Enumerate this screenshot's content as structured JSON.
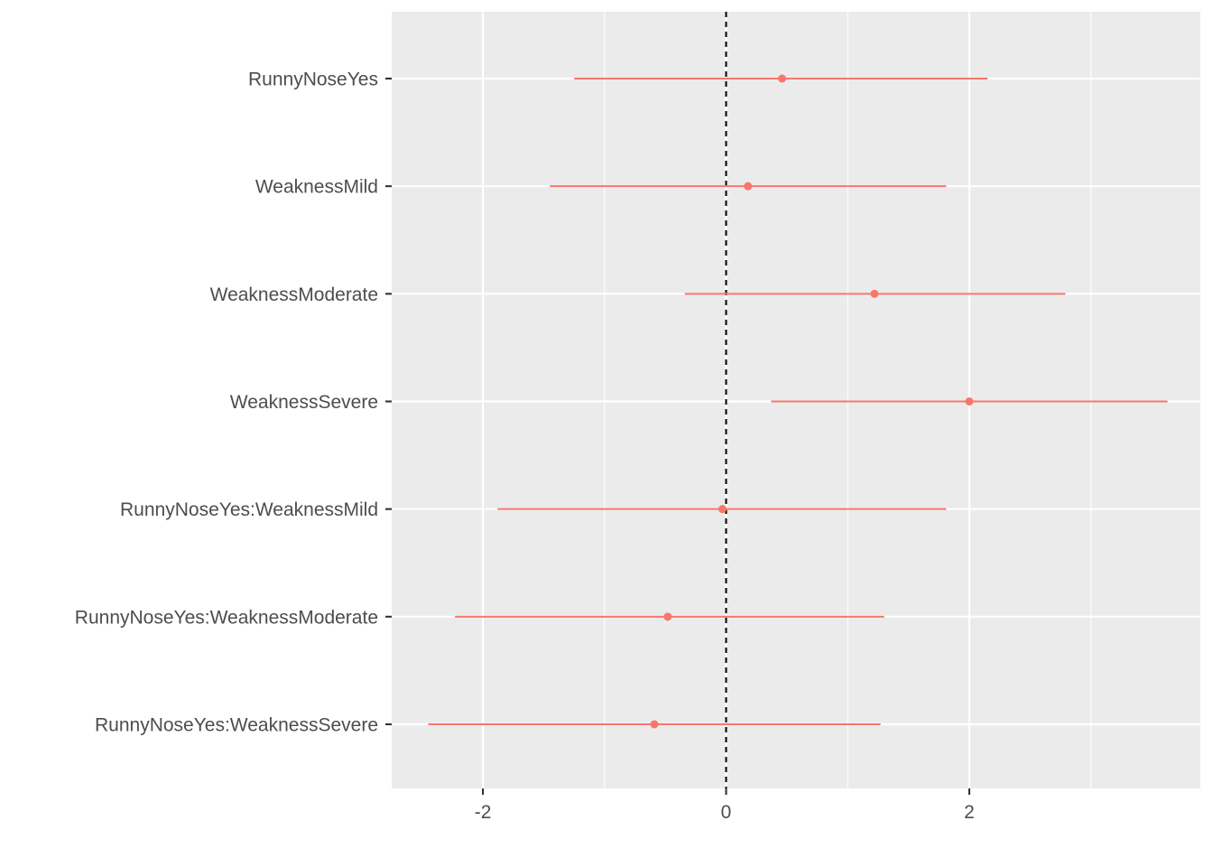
{
  "chart_data": {
    "type": "forest",
    "title": "",
    "xlabel": "",
    "ylabel": "",
    "xlim": [
      -2.75,
      3.9
    ],
    "x_ticks": [
      -2,
      0,
      2
    ],
    "x_tick_labels": [
      "-2",
      "0",
      "2"
    ],
    "reference_line": {
      "x": 0,
      "style": "dashed"
    },
    "grid": true,
    "legend": "none",
    "point_color": "#f8766d",
    "categories": [
      "RunnyNoseYes",
      "WeaknessMild",
      "WeaknessModerate",
      "WeaknessSevere",
      "RunnyNoseYes:WeaknessMild",
      "RunnyNoseYes:WeaknessModerate",
      "RunnyNoseYes:WeaknessSevere"
    ],
    "estimates": [
      0.46,
      0.18,
      1.22,
      2.0,
      -0.03,
      -0.48,
      -0.59
    ],
    "lower": [
      -1.25,
      -1.45,
      -0.34,
      0.37,
      -1.88,
      -2.23,
      -2.45
    ],
    "upper": [
      2.15,
      1.81,
      2.79,
      3.63,
      1.81,
      1.3,
      1.27
    ]
  }
}
